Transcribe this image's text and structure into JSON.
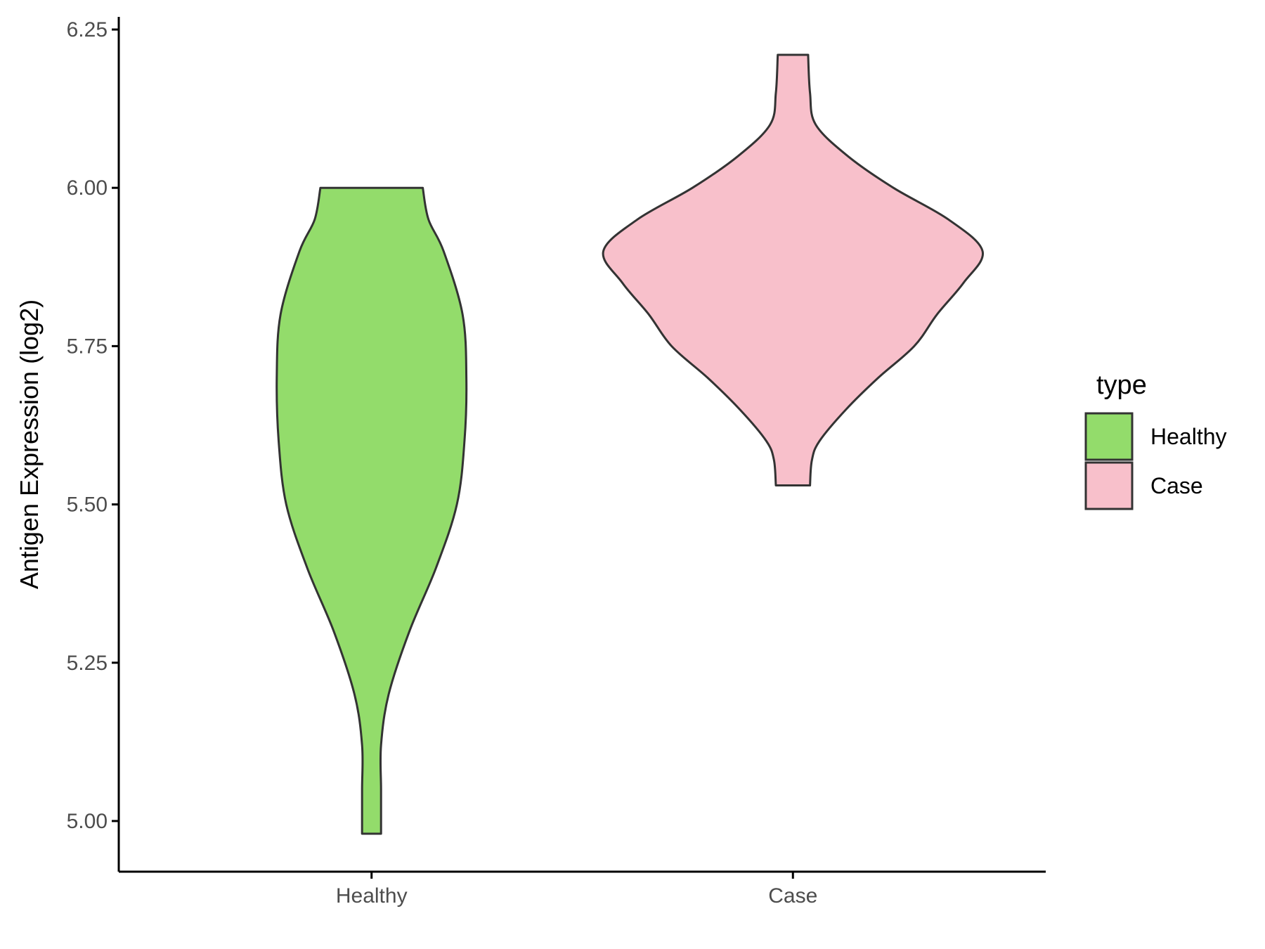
{
  "chart_data": {
    "type": "violin",
    "title": "",
    "xlabel": "",
    "ylabel": "Antigen Expression (log2)",
    "ylim": [
      4.92,
      6.27
    ],
    "yticks": [
      "5.00",
      "5.25",
      "5.50",
      "5.75",
      "6.00",
      "6.25"
    ],
    "categories": [
      "Healthy",
      "Case"
    ],
    "grid": false,
    "legend": {
      "title": "type",
      "position": "right",
      "entries": [
        "Healthy",
        "Case"
      ]
    },
    "series": [
      {
        "name": "Healthy",
        "color": "#93dc6b",
        "y_min": 4.98,
        "y_max": 6.0,
        "density_profile": [
          [
            4.98,
            0.05
          ],
          [
            5.05,
            0.05
          ],
          [
            5.12,
            0.05
          ],
          [
            5.2,
            0.09
          ],
          [
            5.3,
            0.2
          ],
          [
            5.4,
            0.34
          ],
          [
            5.5,
            0.45
          ],
          [
            5.6,
            0.49
          ],
          [
            5.7,
            0.5
          ],
          [
            5.8,
            0.48
          ],
          [
            5.9,
            0.38
          ],
          [
            5.95,
            0.3
          ],
          [
            6.0,
            0.27
          ]
        ]
      },
      {
        "name": "Case",
        "color": "#f8c0cb",
        "y_min": 5.53,
        "y_max": 6.21,
        "density_profile": [
          [
            5.53,
            0.09
          ],
          [
            5.57,
            0.1
          ],
          [
            5.6,
            0.14
          ],
          [
            5.65,
            0.28
          ],
          [
            5.7,
            0.45
          ],
          [
            5.75,
            0.64
          ],
          [
            5.8,
            0.76
          ],
          [
            5.85,
            0.9
          ],
          [
            5.9,
            1.0
          ],
          [
            5.95,
            0.82
          ],
          [
            6.0,
            0.53
          ],
          [
            6.05,
            0.29
          ],
          [
            6.1,
            0.12
          ],
          [
            6.15,
            0.09
          ],
          [
            6.21,
            0.08
          ]
        ]
      }
    ]
  }
}
